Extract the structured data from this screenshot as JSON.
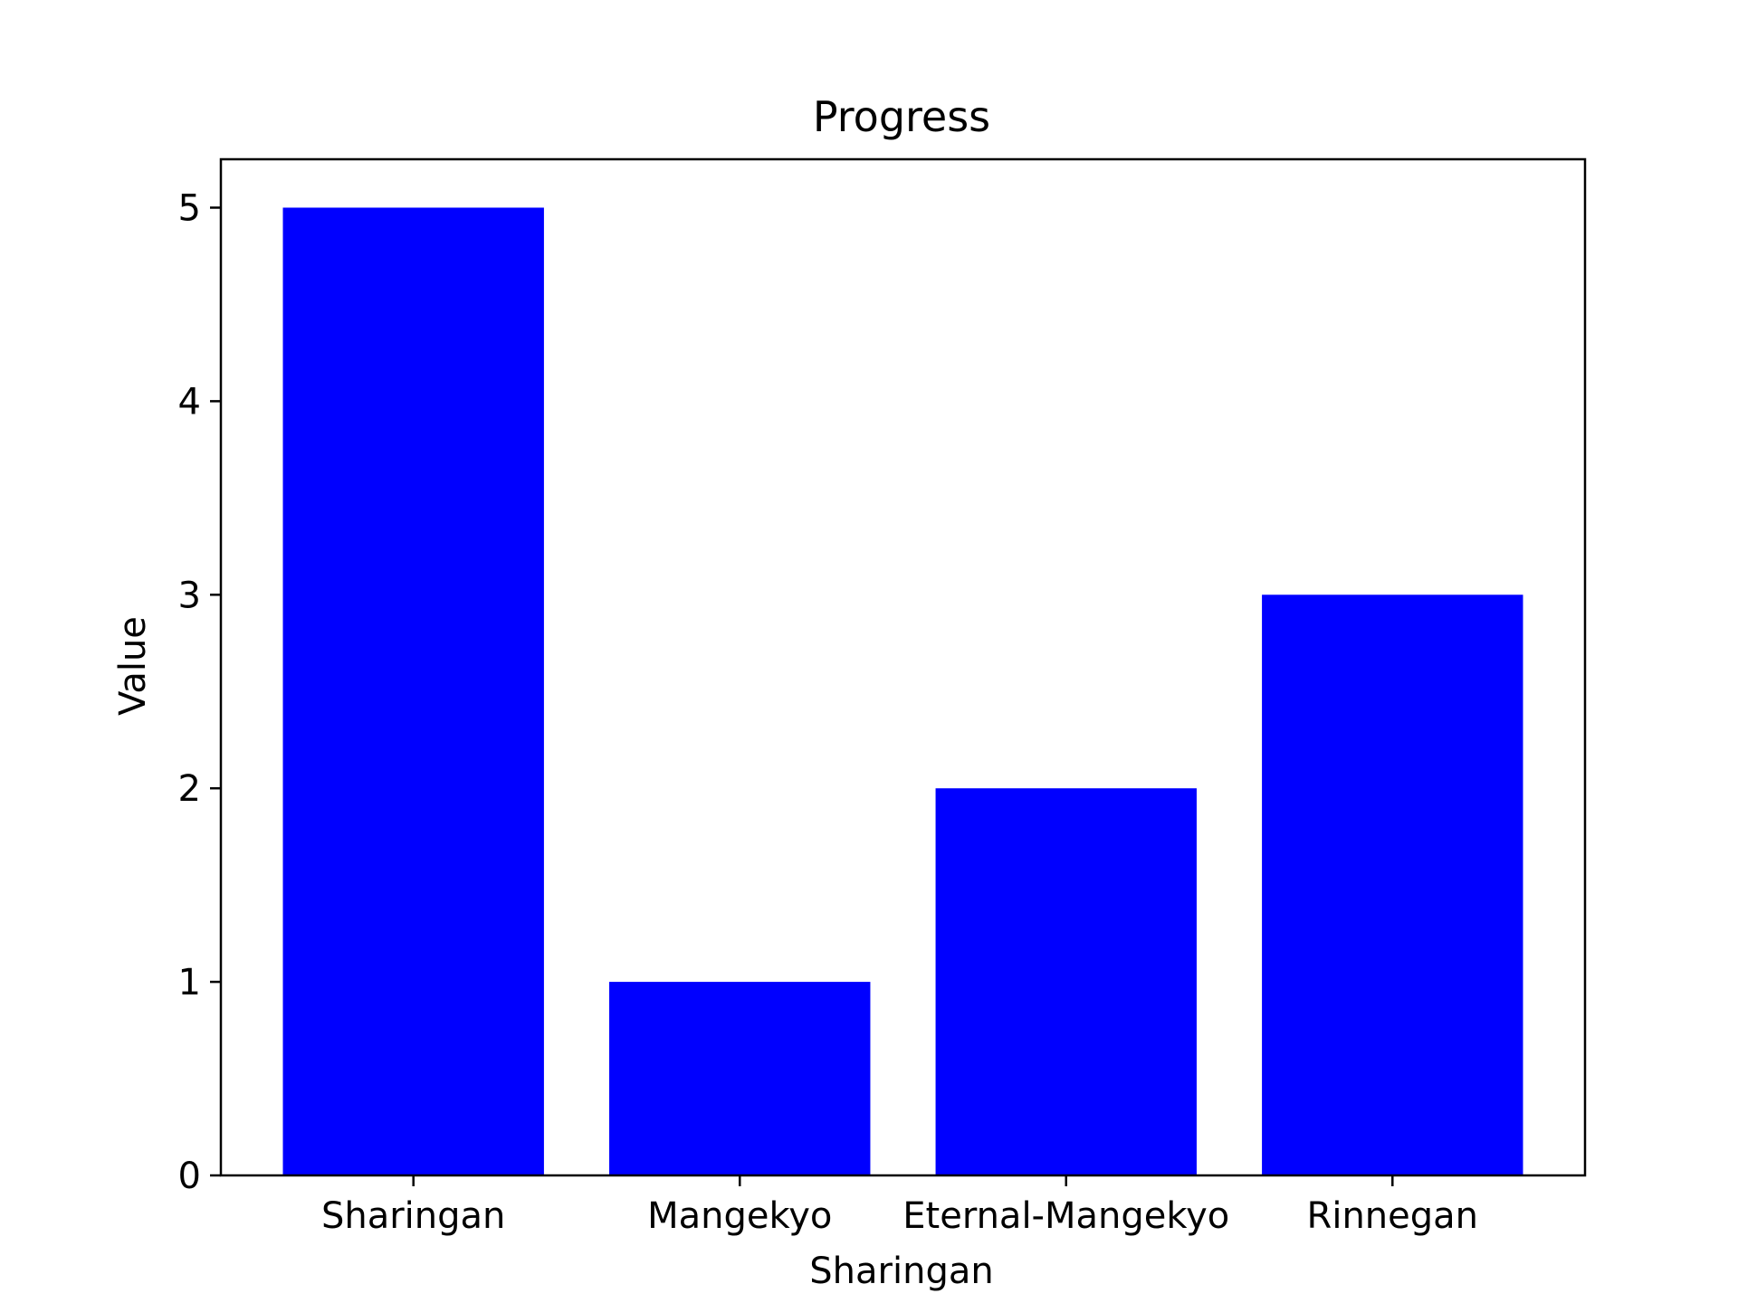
{
  "chart_data": {
    "type": "bar",
    "title": "Progress",
    "xlabel": "Sharingan",
    "ylabel": "Value",
    "categories": [
      "Sharingan",
      "Mangekyo",
      "Eternal-Mangekyo",
      "Rinnegan"
    ],
    "values": [
      5,
      1,
      2,
      3
    ],
    "ylim": [
      0,
      5.25
    ],
    "yticks": [
      0,
      1,
      2,
      3,
      4,
      5
    ],
    "bar_color": "#0000ff",
    "grid": false,
    "legend": "none"
  }
}
